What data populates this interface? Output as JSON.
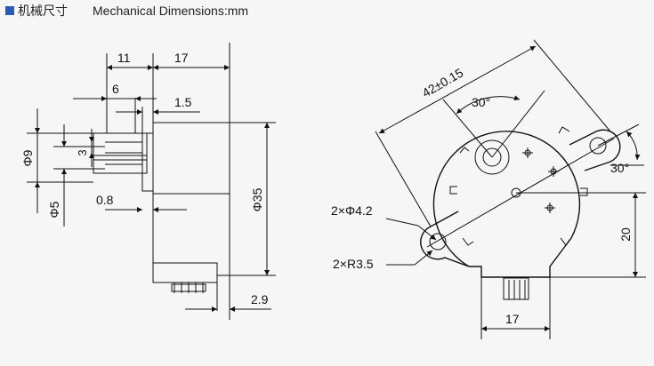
{
  "header": {
    "title_cn": "机械尺寸",
    "title_en": "Mechanical Dimensions:mm",
    "accent_color": "#2a5bb0"
  },
  "side_view": {
    "dim_11": "11",
    "dim_17": "17",
    "dim_6": "6",
    "dim_1_5": "1.5",
    "dim_3": "3",
    "dim_0_8": "0.8",
    "dim_phi9": "Φ9",
    "dim_phi5": "Φ5",
    "dim_phi35": "Φ35",
    "dim_2_9": "2.9"
  },
  "front_view": {
    "dim_42": "42±0.15",
    "angle_30_top": "30°",
    "angle_30_right": "30°",
    "holes": "2×Φ4.2",
    "radius": "2×R3.5",
    "dim_20": "20",
    "dim_17": "17"
  }
}
